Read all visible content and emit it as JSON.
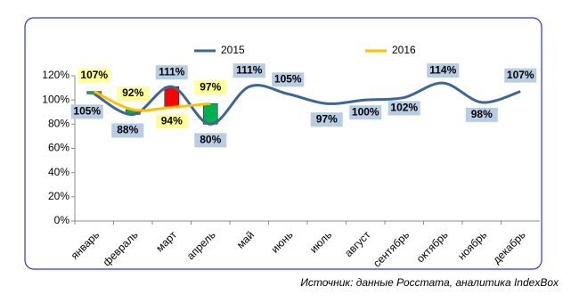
{
  "chart_data": {
    "type": "line",
    "categories": [
      "январь",
      "февраль",
      "март",
      "апрель",
      "май",
      "июнь",
      "июль",
      "август",
      "сентябрь",
      "октябрь",
      "ноябрь",
      "декабрь"
    ],
    "series": [
      {
        "name": "2015",
        "color": "#3e6593",
        "values": [
          105,
          88,
          111,
          80,
          111,
          105,
          97,
          100,
          102,
          114,
          98,
          107
        ],
        "value_labels": [
          "105%",
          "88%",
          "111%",
          "80%",
          "111%",
          "105%",
          "97%",
          "100%",
          "102%",
          "114%",
          "98%",
          "107%"
        ]
      },
      {
        "name": "2016",
        "color": "#ffc000",
        "values": [
          107,
          92,
          94,
          97,
          null,
          null,
          null,
          null,
          null,
          null,
          null,
          null
        ],
        "value_labels": [
          "107%",
          "92%",
          "94%",
          "97%",
          null,
          null,
          null,
          null,
          null,
          null,
          null,
          null
        ]
      }
    ],
    "up_color": "#00b050",
    "down_color": "#ff0000",
    "ylim": [
      0,
      120
    ],
    "yticks": [
      {
        "value": 0,
        "label": "0%"
      },
      {
        "value": 20,
        "label": "20%"
      },
      {
        "value": 40,
        "label": "40%"
      },
      {
        "value": 60,
        "label": "60%"
      },
      {
        "value": 80,
        "label": "80%"
      },
      {
        "value": 100,
        "label": "100%"
      },
      {
        "value": 120,
        "label": "120%"
      }
    ],
    "grid": false,
    "legend": "top",
    "source": "Источник: данные Росстата, аналитика IndexBox"
  }
}
